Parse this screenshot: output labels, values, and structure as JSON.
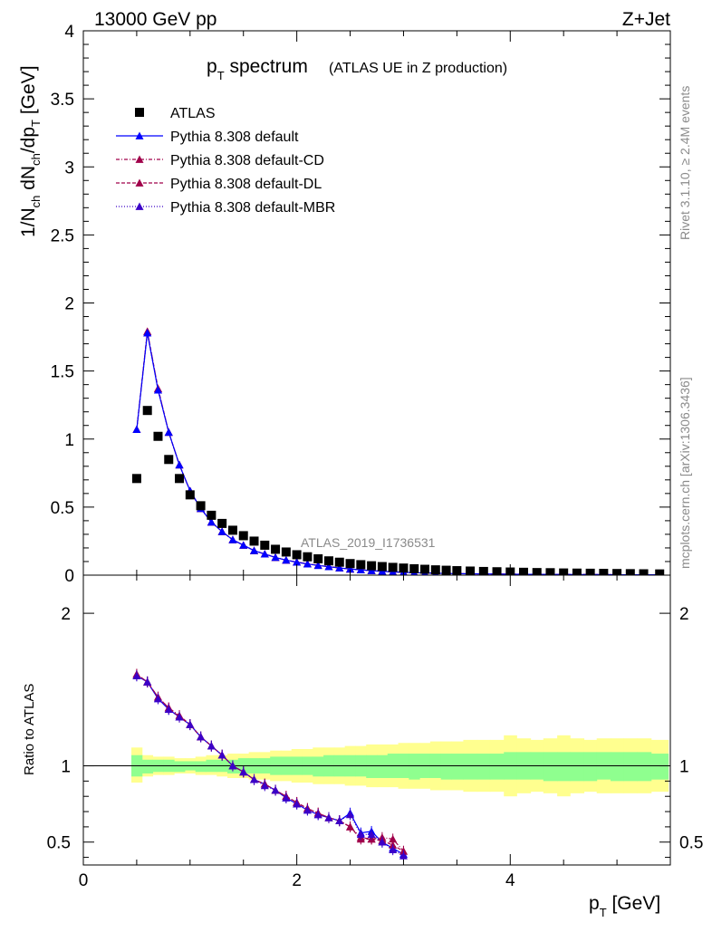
{
  "header": {
    "left": "13000 GeV pp",
    "right": "Z+Jet"
  },
  "side_labels": {
    "rivet": "Rivet 3.1.10, ≥ 2.4M events",
    "mcplots": "mcplots.cern.ch [arXiv:1306.3436]"
  },
  "plot_title": {
    "main": "p",
    "main_sub": "T",
    "main_rest": " spectrum",
    "paren": "(ATLAS UE in Z production)"
  },
  "analysis_label": "ATLAS_2019_I1736531",
  "colors": {
    "atlas": "#000000",
    "default": "#0000ff",
    "cd": "#a0004a",
    "dl": "#a0004a",
    "mbr": "#3b00c8",
    "band_inner": "#8fff8f",
    "band_outer": "#ffff8f"
  },
  "chart_data": [
    {
      "type": "scatter",
      "panel": "main",
      "ylabel": "1/N_ch dN_ch/dp_T [GeV]",
      "xlim": [
        0,
        5.5
      ],
      "ylim": [
        0,
        4
      ],
      "yticks": [
        "0",
        "0.5",
        "1",
        "1.5",
        "2",
        "2.5",
        "3",
        "3.5",
        "4"
      ],
      "legend_position": "top-left",
      "x": [
        0.5,
        0.6,
        0.7,
        0.8,
        0.9,
        1.0,
        1.1,
        1.2,
        1.3,
        1.4,
        1.5,
        1.6,
        1.7,
        1.8,
        1.9,
        2.0,
        2.1,
        2.2,
        2.3,
        2.4,
        2.5,
        2.6,
        2.7,
        2.8,
        2.9,
        3.0,
        3.1,
        3.2,
        3.3,
        3.4,
        3.5,
        3.625,
        3.75,
        3.875,
        4.0,
        4.125,
        4.25,
        4.375,
        4.5,
        4.625,
        4.75,
        4.875,
        5.0,
        5.125,
        5.25,
        5.4
      ],
      "series": [
        {
          "name": "ATLAS",
          "marker": "square",
          "values": [
            0.71,
            1.21,
            1.02,
            0.85,
            0.71,
            0.59,
            0.51,
            0.44,
            0.38,
            0.33,
            0.29,
            0.25,
            0.22,
            0.19,
            0.17,
            0.15,
            0.135,
            0.12,
            0.105,
            0.095,
            0.085,
            0.077,
            0.069,
            0.063,
            0.057,
            0.052,
            0.047,
            0.043,
            0.039,
            0.036,
            0.033,
            0.03,
            0.027,
            0.025,
            0.023,
            0.021,
            0.019,
            0.018,
            0.016,
            0.015,
            0.014,
            0.013,
            0.012,
            0.011,
            0.01,
            0.009
          ]
        },
        {
          "name": "Pythia 8.308 default",
          "marker": "triangle",
          "line": "solid",
          "values": [
            1.07,
            1.78,
            1.36,
            1.05,
            0.81,
            0.62,
            0.49,
            0.39,
            0.32,
            0.26,
            0.22,
            0.18,
            0.155,
            0.13,
            0.11,
            0.095,
            0.082,
            0.071,
            0.062,
            0.053,
            0.045,
            0.039,
            0.033,
            0.028,
            0.024,
            0.021,
            0.018,
            0.016,
            0.014,
            0.012,
            0.011,
            0.01,
            0.009,
            0.008,
            0.007,
            0.006,
            0.006,
            0.005,
            0.005,
            0.004,
            0.004,
            0.004,
            0.003,
            0.003,
            0.003,
            0.003
          ]
        },
        {
          "name": "Pythia 8.308 default-CD",
          "marker": "triangle",
          "line": "dashdot",
          "values": [
            1.07,
            1.79,
            1.37,
            1.05,
            0.81,
            0.62,
            0.49,
            0.39,
            0.32,
            0.26,
            0.22,
            0.18,
            0.155,
            0.13,
            0.11,
            0.096,
            0.083,
            0.072,
            0.062,
            0.053,
            0.045,
            0.039,
            0.033,
            0.028,
            0.024,
            0.021,
            0.018,
            0.016,
            0.014,
            0.012,
            0.011,
            0.01,
            0.009,
            0.008,
            0.007,
            0.006,
            0.006,
            0.005,
            0.005,
            0.004,
            0.004,
            0.004,
            0.003,
            0.003,
            0.003,
            0.003
          ]
        },
        {
          "name": "Pythia 8.308 default-DL",
          "marker": "triangle",
          "line": "dashed",
          "values": [
            1.07,
            1.79,
            1.37,
            1.05,
            0.81,
            0.62,
            0.49,
            0.39,
            0.32,
            0.26,
            0.22,
            0.18,
            0.155,
            0.13,
            0.11,
            0.096,
            0.083,
            0.072,
            0.062,
            0.053,
            0.045,
            0.039,
            0.033,
            0.028,
            0.024,
            0.021,
            0.018,
            0.016,
            0.014,
            0.012,
            0.011,
            0.01,
            0.009,
            0.008,
            0.007,
            0.006,
            0.006,
            0.005,
            0.005,
            0.004,
            0.004,
            0.004,
            0.003,
            0.003,
            0.003,
            0.003
          ]
        },
        {
          "name": "Pythia 8.308 default-MBR",
          "marker": "triangle",
          "line": "dotted",
          "values": [
            1.07,
            1.78,
            1.36,
            1.05,
            0.81,
            0.62,
            0.49,
            0.39,
            0.32,
            0.26,
            0.22,
            0.18,
            0.155,
            0.13,
            0.11,
            0.095,
            0.082,
            0.071,
            0.062,
            0.053,
            0.045,
            0.039,
            0.033,
            0.028,
            0.024,
            0.021,
            0.018,
            0.016,
            0.014,
            0.012,
            0.011,
            0.01,
            0.009,
            0.008,
            0.007,
            0.006,
            0.006,
            0.005,
            0.005,
            0.004,
            0.004,
            0.004,
            0.003,
            0.003,
            0.003,
            0.003
          ]
        }
      ]
    },
    {
      "type": "line",
      "panel": "ratio",
      "xlabel": "p_T [GeV]",
      "ylabel": "Ratio to ATLAS",
      "xlim": [
        0,
        5.5
      ],
      "ylim": [
        0.35,
        2.25
      ],
      "xticks": [
        "0",
        "2",
        "4"
      ],
      "yticks": [
        "0.5",
        "1",
        "2"
      ],
      "reference": 1,
      "bands": {
        "x": [
          0.45,
          0.55,
          0.65,
          0.75,
          0.85,
          0.95,
          1.05,
          1.15,
          1.25,
          1.35,
          1.45,
          1.55,
          1.65,
          1.75,
          1.85,
          1.95,
          2.05,
          2.15,
          2.25,
          2.35,
          2.45,
          2.55,
          2.65,
          2.75,
          2.85,
          2.95,
          3.05,
          3.15,
          3.25,
          3.35,
          3.45,
          3.56,
          3.69,
          3.81,
          3.94,
          4.06,
          4.19,
          4.31,
          4.44,
          4.56,
          4.69,
          4.81,
          4.94,
          5.06,
          5.19,
          5.32,
          5.48
        ],
        "inner_lo": [
          0.93,
          0.95,
          0.96,
          0.96,
          0.96,
          0.97,
          0.96,
          0.96,
          0.96,
          0.95,
          0.95,
          0.95,
          0.95,
          0.94,
          0.94,
          0.94,
          0.94,
          0.93,
          0.93,
          0.93,
          0.93,
          0.93,
          0.92,
          0.92,
          0.92,
          0.92,
          0.91,
          0.92,
          0.92,
          0.91,
          0.91,
          0.91,
          0.91,
          0.91,
          0.91,
          0.91,
          0.91,
          0.9,
          0.9,
          0.9,
          0.9,
          0.91,
          0.9,
          0.9,
          0.9,
          0.91
        ],
        "inner_hi": [
          1.07,
          1.04,
          1.04,
          1.04,
          1.03,
          1.03,
          1.03,
          1.04,
          1.04,
          1.04,
          1.05,
          1.05,
          1.05,
          1.06,
          1.06,
          1.06,
          1.06,
          1.06,
          1.07,
          1.07,
          1.07,
          1.07,
          1.07,
          1.07,
          1.08,
          1.08,
          1.08,
          1.08,
          1.08,
          1.08,
          1.08,
          1.08,
          1.08,
          1.08,
          1.09,
          1.09,
          1.09,
          1.09,
          1.09,
          1.09,
          1.09,
          1.09,
          1.09,
          1.09,
          1.09,
          1.08
        ],
        "outer_lo": [
          0.89,
          0.93,
          0.94,
          0.94,
          0.95,
          0.95,
          0.94,
          0.94,
          0.93,
          0.92,
          0.92,
          0.91,
          0.91,
          0.9,
          0.9,
          0.89,
          0.89,
          0.88,
          0.88,
          0.88,
          0.87,
          0.87,
          0.86,
          0.86,
          0.86,
          0.85,
          0.85,
          0.85,
          0.84,
          0.84,
          0.84,
          0.83,
          0.83,
          0.83,
          0.8,
          0.82,
          0.83,
          0.82,
          0.8,
          0.82,
          0.83,
          0.82,
          0.82,
          0.82,
          0.82,
          0.83
        ],
        "outer_hi": [
          1.12,
          1.07,
          1.06,
          1.06,
          1.05,
          1.05,
          1.06,
          1.07,
          1.07,
          1.08,
          1.08,
          1.09,
          1.09,
          1.1,
          1.1,
          1.11,
          1.11,
          1.12,
          1.12,
          1.12,
          1.13,
          1.13,
          1.14,
          1.14,
          1.14,
          1.15,
          1.15,
          1.15,
          1.16,
          1.16,
          1.16,
          1.17,
          1.17,
          1.17,
          1.2,
          1.18,
          1.17,
          1.18,
          1.2,
          1.18,
          1.17,
          1.18,
          1.18,
          1.18,
          1.18,
          1.17
        ]
      },
      "series": [
        {
          "name": "Pythia 8.308 default",
          "x": [
            0.5,
            0.6,
            0.7,
            0.8,
            0.9,
            1.0,
            1.1,
            1.2,
            1.3,
            1.4,
            1.5,
            1.6,
            1.7,
            1.8,
            1.9,
            2.0,
            2.1,
            2.2,
            2.3,
            2.4,
            2.5,
            2.6,
            2.7,
            2.8,
            2.9,
            3.0
          ],
          "values": [
            1.59,
            1.55,
            1.44,
            1.37,
            1.32,
            1.27,
            1.19,
            1.13,
            1.07,
            1.0,
            0.96,
            0.91,
            0.88,
            0.84,
            0.79,
            0.75,
            0.71,
            0.68,
            0.66,
            0.64,
            0.69,
            0.56,
            0.57,
            0.5,
            0.46,
            0.42
          ]
        },
        {
          "name": "Pythia 8.308 default-CD",
          "x": [
            0.5,
            0.6,
            0.7,
            0.8,
            0.9,
            1.0,
            1.1,
            1.2,
            1.3,
            1.4,
            1.5,
            1.6,
            1.7,
            1.8,
            1.9,
            2.0,
            2.1,
            2.2,
            2.3,
            2.4,
            2.5,
            2.6,
            2.7,
            2.8,
            2.9,
            3.0
          ],
          "values": [
            1.6,
            1.55,
            1.45,
            1.38,
            1.33,
            1.27,
            1.19,
            1.13,
            1.07,
            1.0,
            0.96,
            0.91,
            0.88,
            0.84,
            0.8,
            0.76,
            0.72,
            0.69,
            0.66,
            0.64,
            0.6,
            0.53,
            0.52,
            0.53,
            0.52,
            0.44
          ]
        },
        {
          "name": "Pythia 8.308 default-DL",
          "x": [
            0.5,
            0.6,
            0.7,
            0.8,
            0.9,
            1.0,
            1.1,
            1.2,
            1.3,
            1.4,
            1.5,
            1.6,
            1.7,
            1.8,
            1.9,
            2.0,
            2.1,
            2.2,
            2.3,
            2.4,
            2.5,
            2.6,
            2.7,
            2.8,
            2.9,
            3.0
          ],
          "values": [
            1.6,
            1.55,
            1.45,
            1.38,
            1.32,
            1.27,
            1.19,
            1.13,
            1.07,
            1.0,
            0.96,
            0.91,
            0.88,
            0.84,
            0.8,
            0.76,
            0.72,
            0.69,
            0.66,
            0.64,
            0.6,
            0.52,
            0.52,
            0.51,
            0.48,
            0.44
          ]
        },
        {
          "name": "Pythia 8.308 default-MBR",
          "x": [
            0.5,
            0.6,
            0.7,
            0.8,
            0.9,
            1.0,
            1.1,
            1.2,
            1.3,
            1.4,
            1.5,
            1.6,
            1.7,
            1.8,
            1.9,
            2.0,
            2.1,
            2.2,
            2.3,
            2.4,
            2.5,
            2.6,
            2.7,
            2.8,
            2.9,
            3.0
          ],
          "values": [
            1.59,
            1.55,
            1.44,
            1.37,
            1.32,
            1.27,
            1.19,
            1.13,
            1.07,
            1.0,
            0.96,
            0.91,
            0.87,
            0.84,
            0.79,
            0.75,
            0.71,
            0.68,
            0.66,
            0.64,
            0.68,
            0.55,
            0.55,
            0.5,
            0.45,
            0.41
          ]
        }
      ]
    }
  ]
}
